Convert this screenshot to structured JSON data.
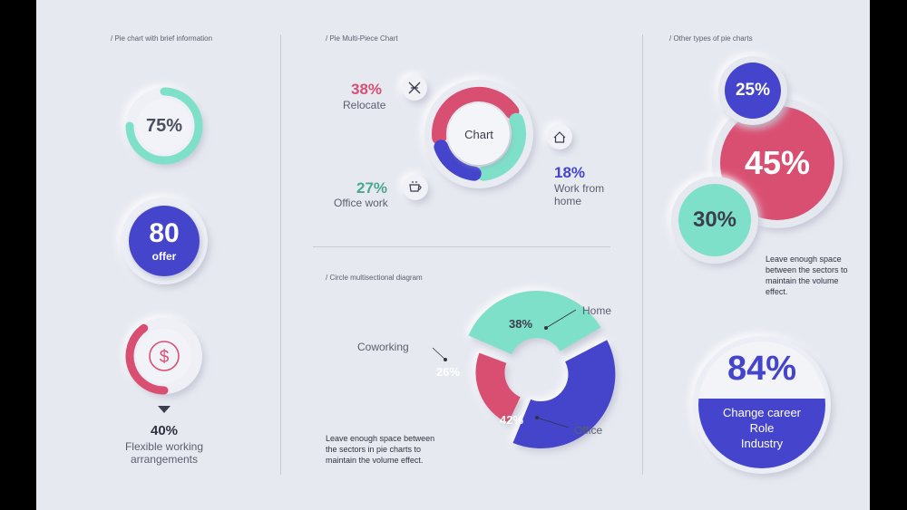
{
  "colors": {
    "background": "#e7e9f1",
    "pink": "#d94f72",
    "mint": "#7ee0c8",
    "blue": "#4444cc",
    "dark": "#3a3e4e"
  },
  "sections": {
    "left_title": "/ Pie chart with brief information",
    "middle_top_title": "/ Pie Multi-Piece Chart",
    "middle_bottom_title": "/ Circle multisectional diagram",
    "right_title": "/ Other types of pie charts"
  },
  "left": {
    "gauge_value": "75%",
    "offer_number": "80",
    "offer_label": "offer",
    "dollar_icon": "dollar-icon",
    "arrow_icon": "triangle-down-icon",
    "flex_value": "40%",
    "flex_label_1": "Flexible working",
    "flex_label_2": "arrangements"
  },
  "multi_piece": {
    "center_label": "Chart",
    "relocate_pct": "38%",
    "relocate_label": "Relocate",
    "office_pct": "27%",
    "office_label": "Office work",
    "home_pct": "18%",
    "home_label_1": "Work from",
    "home_label_2": "home",
    "icons": [
      "plane-icon",
      "home-icon",
      "coffee-cup-icon"
    ]
  },
  "multisection": {
    "home_label": "Home",
    "coworking_label": "Coworking",
    "office_label": "Office",
    "home_pct": "38%",
    "coworking_pct": "26%",
    "office_pct": "42%",
    "note_1": "Leave enough space between",
    "note_2": "the sectors in pie charts to",
    "note_3": "maintain the volume effect."
  },
  "other": {
    "bubble_25": "25%",
    "bubble_45": "45%",
    "bubble_30": "30%",
    "note_1": "Leave enough space",
    "note_2": "between the sectors to",
    "note_3": "maintain the volume",
    "note_4": "effect.",
    "big_value": "84%",
    "career_1": "Change career",
    "career_2": "Role",
    "career_3": "Industry"
  },
  "chart_data": [
    {
      "type": "pie",
      "title": "",
      "categories": [
        ""
      ],
      "values": [
        75
      ]
    },
    {
      "type": "pie",
      "title": "",
      "categories": [
        "offer"
      ],
      "values": [
        80
      ]
    },
    {
      "type": "pie",
      "title": "",
      "categories": [
        "Flexible working arrangements"
      ],
      "values": [
        40
      ]
    },
    {
      "type": "pie",
      "title": "",
      "categories": [
        "Relocate",
        "Office work",
        "Work from home"
      ],
      "values": [
        38,
        27,
        18
      ]
    },
    {
      "type": "pie",
      "title": "",
      "categories": [
        "Home",
        "Coworking",
        "Office"
      ],
      "values": [
        38,
        26,
        42
      ]
    },
    {
      "type": "pie",
      "title": "",
      "categories": [
        "",
        "",
        ""
      ],
      "values": [
        25,
        45,
        30
      ]
    },
    {
      "type": "pie",
      "title": "",
      "categories": [
        "Change career Role Industry"
      ],
      "values": [
        84
      ]
    }
  ]
}
